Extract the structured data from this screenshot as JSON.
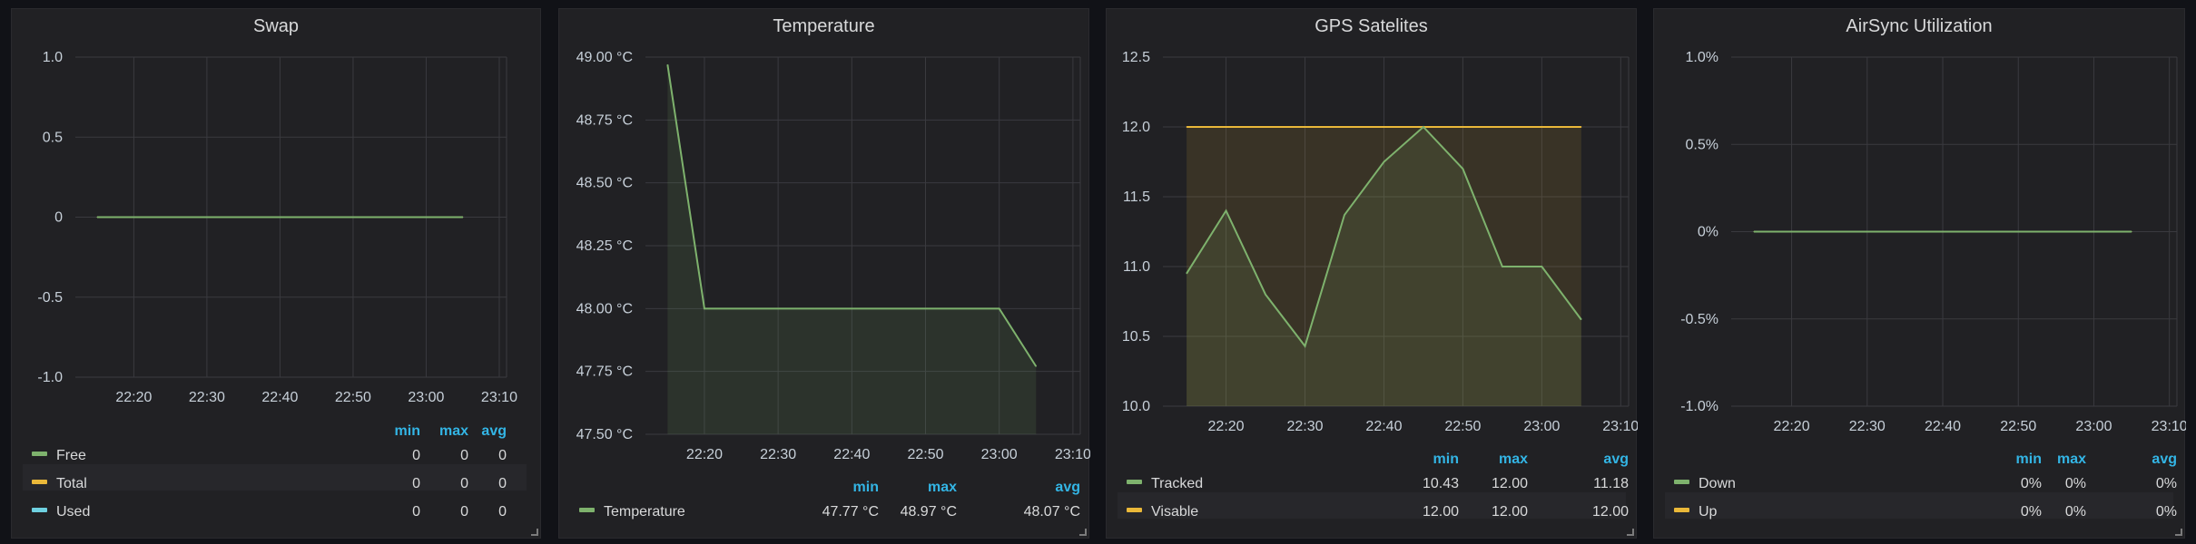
{
  "colors": {
    "green": "#7eb26d",
    "yellow": "#eab839",
    "cyan": "#6ed0e0",
    "legend_header": "#33b5e5"
  },
  "legend_headers": [
    "min",
    "max",
    "avg"
  ],
  "chart_data": [
    {
      "type": "line",
      "title": "Swap",
      "ylim": [
        -1,
        1
      ],
      "yticks": [
        "1.0",
        "0.5",
        "0",
        "-0.5",
        "-1.0"
      ],
      "xticks": [
        "22:20",
        "22:30",
        "22:40",
        "22:50",
        "23:00",
        "23:10"
      ],
      "grid": true,
      "legend_position": "bottom",
      "x": [
        "22:15",
        "23:05"
      ],
      "series": [
        {
          "name": "Free",
          "color": "#7eb26d",
          "values": [
            0,
            0
          ],
          "min": "0",
          "max": "0",
          "avg": "0"
        },
        {
          "name": "Total",
          "color": "#eab839",
          "values": [
            0,
            0
          ],
          "min": "0",
          "max": "0",
          "avg": "0"
        },
        {
          "name": "Used",
          "color": "#6ed0e0",
          "values": [
            0,
            0
          ],
          "min": "0",
          "max": "0",
          "avg": "0"
        }
      ]
    },
    {
      "type": "area",
      "title": "Temperature",
      "ylim": [
        47.5,
        49.0
      ],
      "yticks": [
        "49.00 °C",
        "48.75 °C",
        "48.50 °C",
        "48.25 °C",
        "48.00 °C",
        "47.75 °C",
        "47.50 °C"
      ],
      "xticks": [
        "22:20",
        "22:30",
        "22:40",
        "22:50",
        "23:00",
        "23:10"
      ],
      "grid": true,
      "legend_position": "bottom",
      "x": [
        "22:15",
        "22:20",
        "22:25",
        "22:30",
        "22:35",
        "22:40",
        "22:45",
        "22:50",
        "22:55",
        "23:00",
        "23:05"
      ],
      "series": [
        {
          "name": "Temperature",
          "color": "#7eb26d",
          "values": [
            48.97,
            48.0,
            48.0,
            48.0,
            48.0,
            48.0,
            48.0,
            48.0,
            48.0,
            48.0,
            47.77
          ],
          "min": "47.77 °C",
          "max": "48.97 °C",
          "avg": "48.07 °C"
        }
      ]
    },
    {
      "type": "area",
      "title": "GPS Satelites",
      "ylim": [
        10.0,
        12.5
      ],
      "yticks": [
        "12.5",
        "12.0",
        "11.5",
        "11.0",
        "10.5",
        "10.0"
      ],
      "xticks": [
        "22:20",
        "22:30",
        "22:40",
        "22:50",
        "23:00",
        "23:10"
      ],
      "grid": true,
      "legend_position": "bottom",
      "x": [
        "22:15",
        "22:20",
        "22:25",
        "22:30",
        "22:35",
        "22:40",
        "22:45",
        "22:50",
        "22:55",
        "23:00",
        "23:05"
      ],
      "series": [
        {
          "name": "Tracked",
          "color": "#7eb26d",
          "values": [
            10.95,
            11.4,
            10.8,
            10.43,
            11.37,
            11.75,
            12.0,
            11.7,
            11.0,
            11.0,
            10.62
          ],
          "min": "10.43",
          "max": "12.00",
          "avg": "11.18"
        },
        {
          "name": "Visable",
          "color": "#eab839",
          "values": [
            12.0,
            12.0,
            12.0,
            12.0,
            12.0,
            12.0,
            12.0,
            12.0,
            12.0,
            12.0,
            12.0
          ],
          "min": "12.00",
          "max": "12.00",
          "avg": "12.00"
        }
      ]
    },
    {
      "type": "line",
      "title": "AirSync Utilization",
      "ylim": [
        -1.0,
        1.0
      ],
      "yticks": [
        "1.0%",
        "0.5%",
        "0%",
        "-0.5%",
        "-1.0%"
      ],
      "xticks": [
        "22:20",
        "22:30",
        "22:40",
        "22:50",
        "23:00",
        "23:10"
      ],
      "grid": true,
      "legend_position": "bottom",
      "x": [
        "22:15",
        "23:05"
      ],
      "series": [
        {
          "name": "Down",
          "color": "#7eb26d",
          "values": [
            0,
            0
          ],
          "min": "0%",
          "max": "0%",
          "avg": "0%"
        },
        {
          "name": "Up",
          "color": "#eab839",
          "values": [
            0,
            0
          ],
          "min": "0%",
          "max": "0%",
          "avg": "0%"
        }
      ]
    }
  ]
}
